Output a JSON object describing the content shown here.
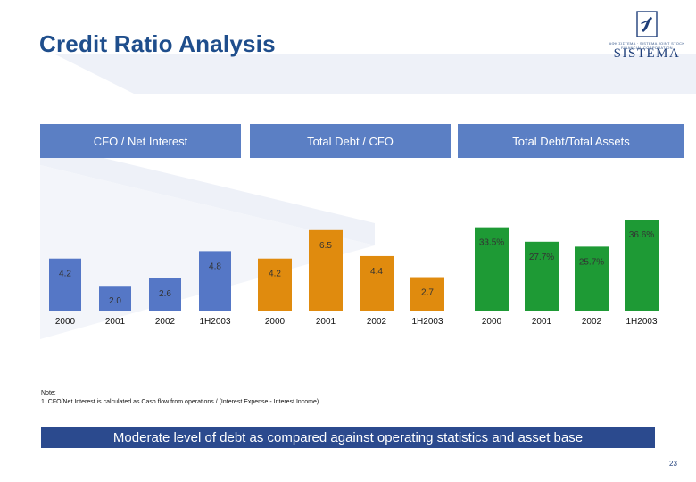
{
  "page": {
    "title": "Credit Ratio Analysis",
    "logo_tagline": "ΑΦΚ ΣΙΣΤΕΜΑ · SISTEMA JOINT STOCK FINANCIAL CORPORATION",
    "logo_word": "SISTEMA",
    "note_heading": "Note:",
    "note_text": "1. CFO/Net Interest is calculated as Cash flow from operations / (Interest Expense - Interest Income)",
    "banner": "Moderate level of debt as compared against operating statistics and asset base",
    "page_number": "23"
  },
  "colors": {
    "title": "#1f4e8c",
    "header_bg": "#5b7fc4",
    "banner_bg": "#2b4a8e",
    "blue_bar": "#5577c6",
    "orange_bar": "#e08b0e",
    "green_bar": "#1e9a35",
    "deco": "#e9edf6"
  },
  "chart_data": [
    {
      "type": "bar",
      "title": "CFO / Net Interest",
      "categories": [
        "2000",
        "2001",
        "2002",
        "1H2003"
      ],
      "values": [
        4.2,
        2.0,
        2.6,
        4.8
      ],
      "labels": [
        "4.2",
        "2.0",
        "2.6",
        "4.8"
      ],
      "ylim": [
        0,
        9.8
      ],
      "color": "#5577c6"
    },
    {
      "type": "bar",
      "title": "Total Debt / CFO",
      "categories": [
        "2000",
        "2001",
        "2002",
        "1H2003"
      ],
      "values": [
        4.2,
        6.5,
        4.4,
        2.7
      ],
      "labels": [
        "4.2",
        "6.5",
        "4.4",
        "2.7"
      ],
      "ylim": [
        0,
        9.8
      ],
      "color": "#e08b0e"
    },
    {
      "type": "bar",
      "title": "Total Debt/Total Assets",
      "categories": [
        "2000",
        "2001",
        "2002",
        "1H2003"
      ],
      "values": [
        33.5,
        27.7,
        25.7,
        36.6
      ],
      "labels": [
        "33.5%",
        "27.7%",
        "25.7%",
        "36.6%"
      ],
      "ylim": [
        0,
        48.8
      ],
      "color": "#1e9a35"
    }
  ]
}
